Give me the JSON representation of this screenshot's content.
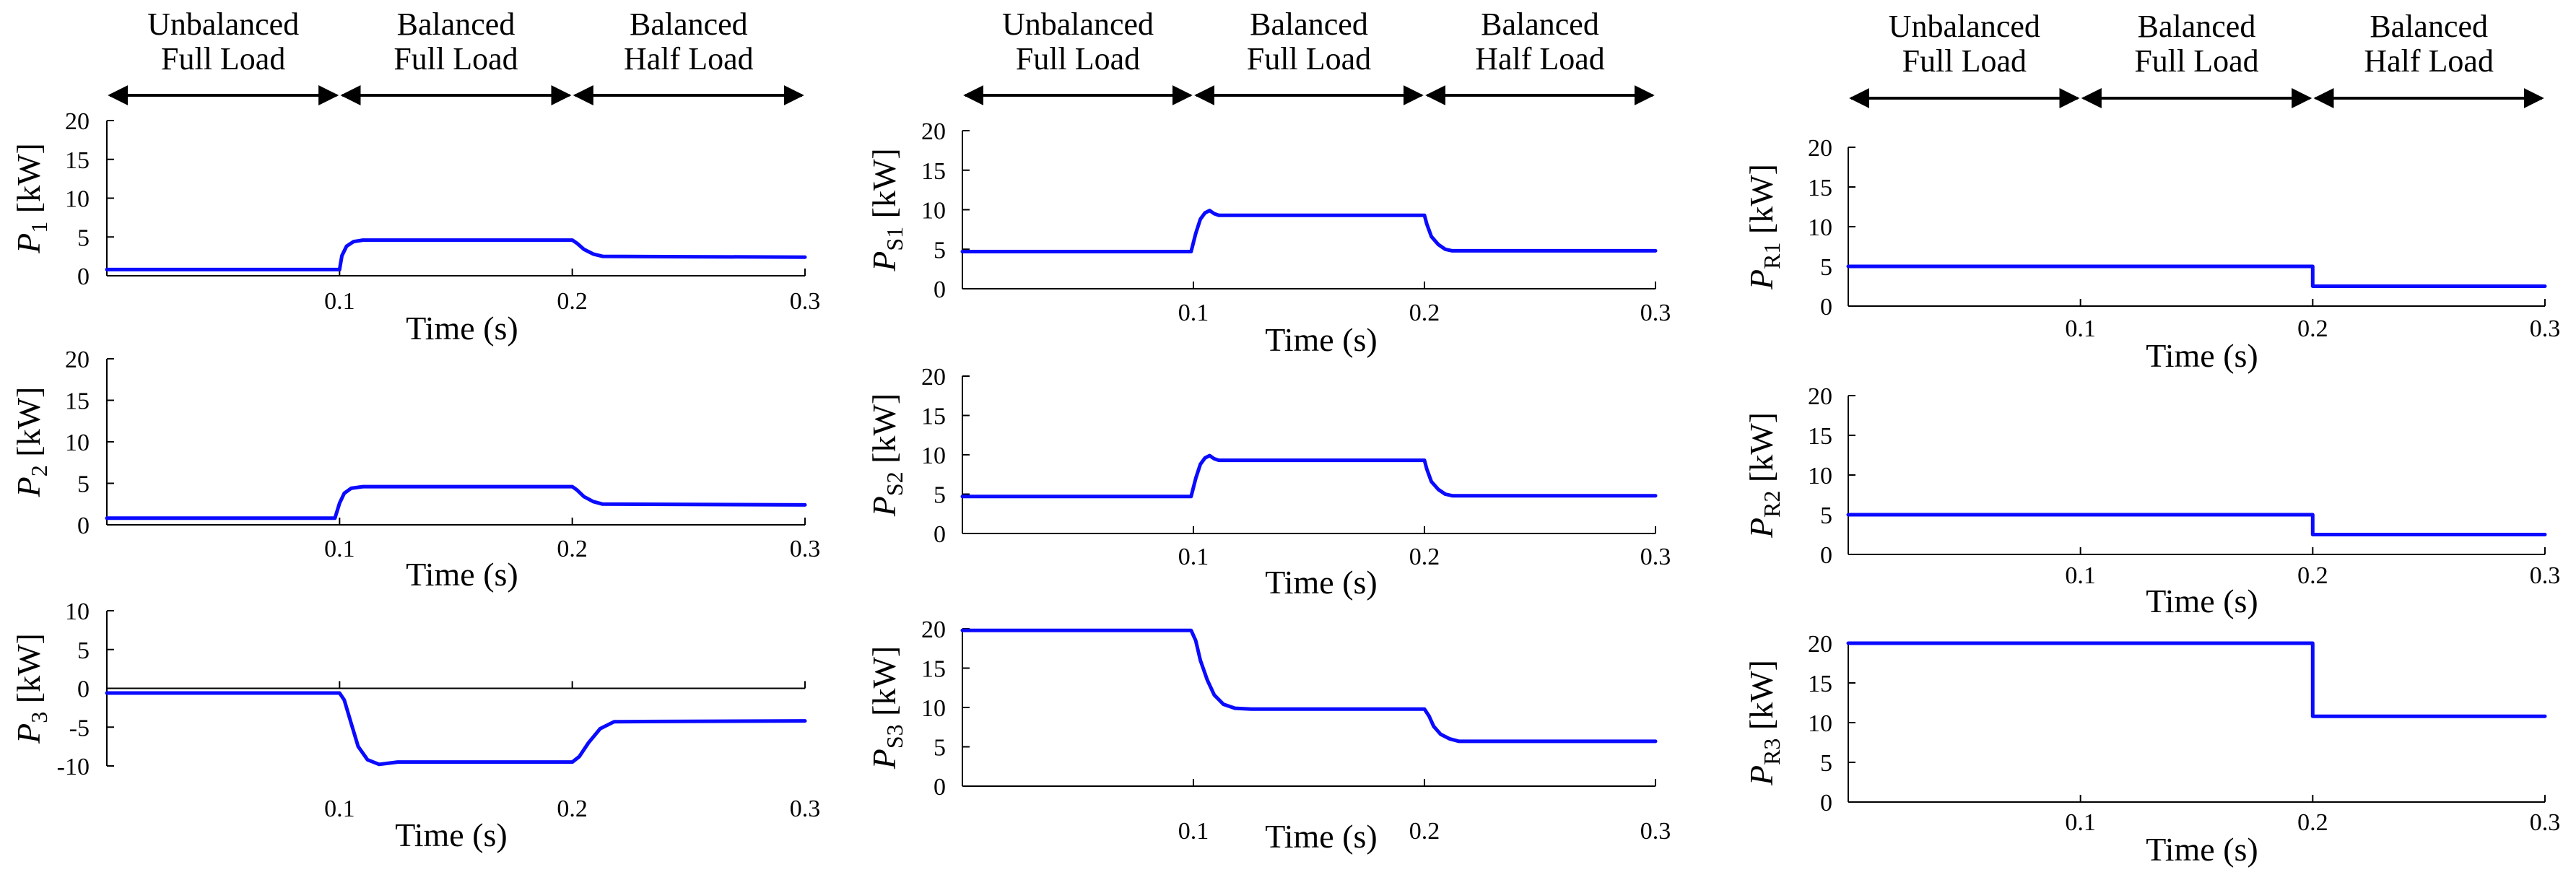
{
  "figure_title": "",
  "colors": {
    "series": "#0a0aff",
    "axis": "#000000",
    "background": "#ffffff"
  },
  "columns": [
    {
      "segments": [
        {
          "line1": "Unbalanced",
          "line2": "Full Load"
        },
        {
          "line1": "Balanced",
          "line2": "Full Load"
        },
        {
          "line1": "Balanced",
          "line2": "Half Load"
        }
      ]
    },
    {
      "segments": [
        {
          "line1": "Unbalanced",
          "line2": "Full Load"
        },
        {
          "line1": "Balanced",
          "line2": "Full Load"
        },
        {
          "line1": "Balanced",
          "line2": "Half Load"
        }
      ]
    },
    {
      "segments": [
        {
          "line1": "Unbalanced",
          "line2": "Full Load"
        },
        {
          "line1": "Balanced",
          "line2": "Full Load"
        },
        {
          "line1": "Balanced",
          "line2": "Half Load"
        }
      ]
    }
  ],
  "chart_data": [
    {
      "id": "P1",
      "type": "line",
      "ylabel": {
        "symbol": "P",
        "sub": "1",
        "unit": "[kW]"
      },
      "xlabel": "Time (s)",
      "xlim": [
        0,
        0.3
      ],
      "ylim": [
        0,
        20
      ],
      "xticks": [
        0.1,
        0.2,
        0.3
      ],
      "xtick_labels": [
        "0.1",
        "0.2",
        "0.3"
      ],
      "yticks": [
        0,
        5,
        10,
        15,
        20
      ],
      "ytick_labels": [
        "0",
        "5",
        "10",
        "15",
        "20"
      ],
      "zero_line": false,
      "series": [
        {
          "name": "P1",
          "x": [
            0,
            0.1,
            0.101,
            0.103,
            0.106,
            0.11,
            0.2,
            0.202,
            0.205,
            0.209,
            0.213,
            0.3
          ],
          "y": [
            0.8,
            0.8,
            2.6,
            3.8,
            4.4,
            4.6,
            4.6,
            4.2,
            3.4,
            2.8,
            2.5,
            2.4
          ]
        }
      ]
    },
    {
      "id": "P2",
      "type": "line",
      "ylabel": {
        "symbol": "P",
        "sub": "2",
        "unit": "[kW]"
      },
      "xlabel": "Time (s)",
      "xlim": [
        0,
        0.3
      ],
      "ylim": [
        0,
        20
      ],
      "xticks": [
        0.1,
        0.2,
        0.3
      ],
      "xtick_labels": [
        "0.1",
        "0.2",
        "0.3"
      ],
      "yticks": [
        0,
        5,
        10,
        15,
        20
      ],
      "ytick_labels": [
        "0",
        "5",
        "10",
        "15",
        "20"
      ],
      "zero_line": false,
      "series": [
        {
          "name": "P2",
          "x": [
            0,
            0.098,
            0.1,
            0.102,
            0.105,
            0.11,
            0.2,
            0.202,
            0.205,
            0.209,
            0.213,
            0.3
          ],
          "y": [
            0.8,
            0.8,
            2.6,
            3.8,
            4.4,
            4.6,
            4.6,
            4.2,
            3.4,
            2.8,
            2.5,
            2.4
          ]
        }
      ]
    },
    {
      "id": "P3",
      "type": "line",
      "ylabel": {
        "symbol": "P",
        "sub": "3",
        "unit": "[kW]"
      },
      "xlabel": "Time (s)",
      "xlim": [
        0,
        0.3
      ],
      "ylim": [
        -10,
        10
      ],
      "xticks": [
        0.1,
        0.2,
        0.3
      ],
      "xtick_labels": [
        "0.1",
        "0.2",
        "0.3"
      ],
      "yticks": [
        -10,
        -5,
        0,
        5,
        10
      ],
      "ytick_labels": [
        "-10",
        "-5",
        "0",
        "5",
        "10"
      ],
      "zero_line": true,
      "series": [
        {
          "name": "P3",
          "x": [
            0,
            0.1,
            0.102,
            0.105,
            0.108,
            0.112,
            0.117,
            0.125,
            0.2,
            0.203,
            0.207,
            0.212,
            0.218,
            0.3
          ],
          "y": [
            -0.6,
            -0.6,
            -1.5,
            -4.5,
            -7.5,
            -9.2,
            -9.8,
            -9.5,
            -9.5,
            -8.8,
            -7,
            -5.2,
            -4.3,
            -4.2
          ]
        }
      ]
    },
    {
      "id": "PS1",
      "type": "line",
      "ylabel": {
        "symbol": "P",
        "sub": "S1",
        "unit": "[kW]"
      },
      "xlabel": "Time (s)",
      "xlim": [
        0,
        0.3
      ],
      "ylim": [
        0,
        20
      ],
      "xticks": [
        0.1,
        0.2,
        0.3
      ],
      "xtick_labels": [
        "0.1",
        "0.2",
        "0.3"
      ],
      "yticks": [
        0,
        5,
        10,
        15,
        20
      ],
      "ytick_labels": [
        "0",
        "5",
        "10",
        "15",
        "20"
      ],
      "zero_line": false,
      "series": [
        {
          "name": "PS1",
          "x": [
            0,
            0.099,
            0.101,
            0.103,
            0.105,
            0.107,
            0.109,
            0.111,
            0.2,
            0.201,
            0.203,
            0.206,
            0.209,
            0.212,
            0.3
          ],
          "y": [
            4.7,
            4.7,
            7,
            8.8,
            9.6,
            9.9,
            9.5,
            9.3,
            9.3,
            8.2,
            6.6,
            5.6,
            5,
            4.8,
            4.8
          ]
        }
      ]
    },
    {
      "id": "PS2",
      "type": "line",
      "ylabel": {
        "symbol": "P",
        "sub": "S2",
        "unit": "[kW]"
      },
      "xlabel": "Time (s)",
      "xlim": [
        0,
        0.3
      ],
      "ylim": [
        0,
        20
      ],
      "xticks": [
        0.1,
        0.2,
        0.3
      ],
      "xtick_labels": [
        "0.1",
        "0.2",
        "0.3"
      ],
      "yticks": [
        0,
        5,
        10,
        15,
        20
      ],
      "ytick_labels": [
        "0",
        "5",
        "10",
        "15",
        "20"
      ],
      "zero_line": false,
      "series": [
        {
          "name": "PS2",
          "x": [
            0,
            0.099,
            0.101,
            0.103,
            0.105,
            0.107,
            0.109,
            0.111,
            0.2,
            0.201,
            0.203,
            0.206,
            0.209,
            0.212,
            0.3
          ],
          "y": [
            4.7,
            4.7,
            7,
            8.8,
            9.6,
            9.9,
            9.5,
            9.3,
            9.3,
            8.2,
            6.6,
            5.6,
            5,
            4.8,
            4.8
          ]
        }
      ]
    },
    {
      "id": "PS3",
      "type": "line",
      "ylabel": {
        "symbol": "P",
        "sub": "S3",
        "unit": "[kW]"
      },
      "xlabel": "Time (s)",
      "xlim": [
        0,
        0.3
      ],
      "ylim": [
        0,
        20
      ],
      "xticks": [
        0.1,
        0.2,
        0.3
      ],
      "xtick_labels": [
        "0.1",
        "0.2",
        "0.3"
      ],
      "yticks": [
        0,
        5,
        10,
        15,
        20
      ],
      "ytick_labels": [
        "0",
        "5",
        "10",
        "15",
        "20"
      ],
      "zero_line": false,
      "series": [
        {
          "name": "PS3",
          "x": [
            0,
            0.099,
            0.101,
            0.103,
            0.106,
            0.109,
            0.113,
            0.118,
            0.125,
            0.2,
            0.202,
            0.204,
            0.207,
            0.211,
            0.215,
            0.3
          ],
          "y": [
            19.8,
            19.8,
            18.5,
            16,
            13.5,
            11.6,
            10.4,
            9.9,
            9.8,
            9.8,
            8.9,
            7.6,
            6.6,
            6,
            5.7,
            5.7
          ]
        }
      ]
    },
    {
      "id": "PR1",
      "type": "line",
      "ylabel": {
        "symbol": "P",
        "sub": "R1",
        "unit": "[kW]"
      },
      "xlabel": "Time (s)",
      "xlim": [
        0,
        0.3
      ],
      "ylim": [
        0,
        20
      ],
      "xticks": [
        0.1,
        0.2,
        0.3
      ],
      "xtick_labels": [
        "0.1",
        "0.2",
        "0.3"
      ],
      "yticks": [
        0,
        5,
        10,
        15,
        20
      ],
      "ytick_labels": [
        "0",
        "5",
        "10",
        "15",
        "20"
      ],
      "zero_line": false,
      "series": [
        {
          "name": "PR1",
          "x": [
            0,
            0.2,
            0.2,
            0.3
          ],
          "y": [
            5,
            5,
            2.5,
            2.5
          ]
        }
      ]
    },
    {
      "id": "PR2",
      "type": "line",
      "ylabel": {
        "symbol": "P",
        "sub": "R2",
        "unit": "[kW]"
      },
      "xlabel": "Time (s)",
      "xlim": [
        0,
        0.3
      ],
      "ylim": [
        0,
        20
      ],
      "xticks": [
        0.1,
        0.2,
        0.3
      ],
      "xtick_labels": [
        "0.1",
        "0.2",
        "0.3"
      ],
      "yticks": [
        0,
        5,
        10,
        15,
        20
      ],
      "ytick_labels": [
        "0",
        "5",
        "10",
        "15",
        "20"
      ],
      "zero_line": false,
      "series": [
        {
          "name": "PR2",
          "x": [
            0,
            0.2,
            0.2,
            0.3
          ],
          "y": [
            5,
            5,
            2.5,
            2.5
          ]
        }
      ]
    },
    {
      "id": "PR3",
      "type": "line",
      "ylabel": {
        "symbol": "P",
        "sub": "R3",
        "unit": "[kW]"
      },
      "xlabel": "Time (s)",
      "xlim": [
        0,
        0.3
      ],
      "ylim": [
        0,
        20
      ],
      "xticks": [
        0.1,
        0.2,
        0.3
      ],
      "xtick_labels": [
        "0.1",
        "0.2",
        "0.3"
      ],
      "yticks": [
        0,
        5,
        10,
        15,
        20
      ],
      "ytick_labels": [
        "0",
        "5",
        "10",
        "15",
        "20"
      ],
      "zero_line": false,
      "series": [
        {
          "name": "PR3",
          "x": [
            0,
            0.2,
            0.2,
            0.3
          ],
          "y": [
            20,
            20,
            10.8,
            10.8
          ]
        }
      ]
    }
  ]
}
